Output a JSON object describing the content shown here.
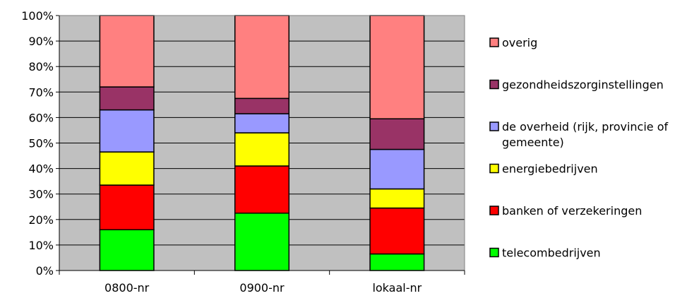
{
  "chart_data": {
    "type": "bar",
    "stacked": true,
    "percent_stacked": true,
    "categories": [
      "0800-nr",
      "0900-nr",
      "lokaal-nr"
    ],
    "series": [
      {
        "name": "telecombedrijven",
        "color": "#00ff00",
        "values": [
          16,
          22.5,
          6.5
        ]
      },
      {
        "name": "banken of verzekeringen",
        "color": "#ff0000",
        "values": [
          17.5,
          18.5,
          18
        ]
      },
      {
        "name": "energiebedrijven",
        "color": "#ffff00",
        "values": [
          13,
          13,
          7.5
        ]
      },
      {
        "name": "de overheid (rijk, provincie of gemeente)",
        "color": "#9999ff",
        "values": [
          16.5,
          7.5,
          15.5
        ]
      },
      {
        "name": "gezondheidszorginstellingen",
        "color": "#993366",
        "values": [
          9,
          6,
          12
        ]
      },
      {
        "name": "overig",
        "color": "#ff8080",
        "values": [
          28,
          32.5,
          40.5
        ]
      }
    ],
    "y_ticks": [
      "0%",
      "10%",
      "20%",
      "30%",
      "40%",
      "50%",
      "60%",
      "70%",
      "80%",
      "90%",
      "100%"
    ],
    "ylim": [
      0,
      100
    ],
    "grid": true,
    "plot_background": "#c0c0c0",
    "legend_position": "right",
    "legend_order": [
      "overig",
      "gezondheidszorginstellingen",
      "de overheid (rijk, provincie of gemeente)",
      "energiebedrijven",
      "banken of verzekeringen",
      "telecombedrijven"
    ],
    "legend_lines": [
      [
        "overig"
      ],
      [
        "gezondheidszorginstellingen"
      ],
      [
        "de overheid (rijk, provincie of",
        "gemeente)"
      ],
      [
        "energiebedrijven"
      ],
      [
        "banken of verzekeringen"
      ],
      [
        "telecombedrijven"
      ]
    ]
  }
}
